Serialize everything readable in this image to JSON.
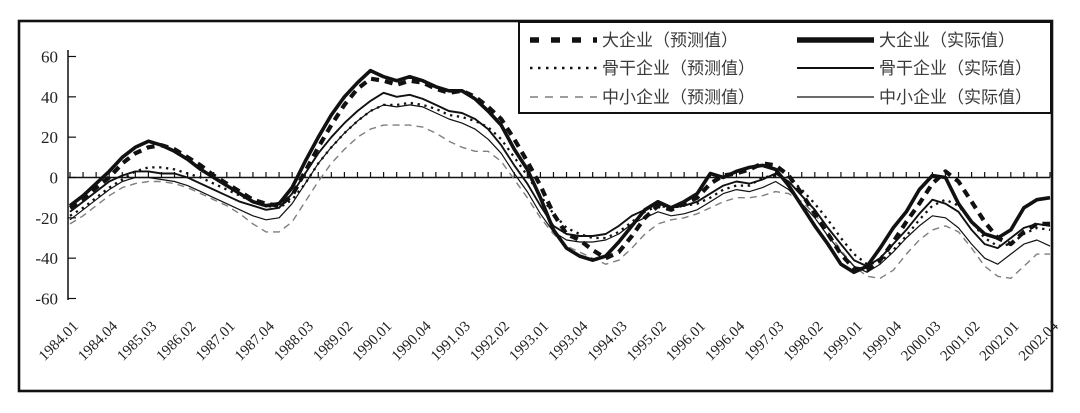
{
  "figure": {
    "background": "#ffffff",
    "frame_color": "#111111",
    "axis_color": "#111111"
  },
  "chart_data": {
    "type": "line",
    "title": "",
    "xlabel": "",
    "ylabel": "",
    "grid": false,
    "x_axis": {
      "unit": "quarter",
      "start": "1984.01",
      "end": "2002.04",
      "num_points": 76,
      "tick_label_every_n_quarters": 3,
      "tick_labels": [
        "1984.01",
        "1984.04",
        "1985.03",
        "1986.02",
        "1987.01",
        "1987.04",
        "1988.03",
        "1989.02",
        "1990.01",
        "1990.04",
        "1991.03",
        "1992.02",
        "1993.01",
        "1993.04",
        "1994.03",
        "1995.02",
        "1996.01",
        "1996.04",
        "1997.03",
        "1998.02",
        "1999.01",
        "1999.04",
        "2000.03",
        "2001.02",
        "2002.01",
        "2002.04"
      ]
    },
    "y_axis": {
      "min": -60,
      "max": 60,
      "tick_step": 20,
      "tick_labels": [
        "60",
        "40",
        "20",
        "0",
        "-20",
        "-40",
        "-60"
      ]
    },
    "legend": {
      "position": "top-right",
      "rows": [
        [
          "大企业（预测值）",
          "大企业（实际值）"
        ],
        [
          "骨干企业（预测值）",
          "骨干企业（实际值）"
        ],
        [
          "中小企业（预测值）",
          "中小企业（实际值）"
        ]
      ]
    },
    "series": [
      {
        "key": "big-forecast",
        "name": "大企业（预测值）",
        "style": "thick-dashed",
        "color": "#111111",
        "values": [
          -15,
          -11,
          -5,
          0,
          7,
          12,
          15,
          16,
          14,
          10,
          6,
          1,
          -3,
          -7,
          -11,
          -13,
          -14,
          -9,
          3,
          15,
          26,
          36,
          44,
          49,
          48,
          46,
          48,
          47,
          44,
          42,
          43,
          40,
          35,
          29,
          19,
          8,
          -4,
          -18,
          -28,
          -31,
          -36,
          -40,
          -37,
          -29,
          -20,
          -14,
          -16,
          -13,
          -10,
          -3,
          1,
          2,
          4,
          7,
          6,
          1,
          -8,
          -18,
          -28,
          -38,
          -45,
          -46,
          -41,
          -32,
          -22,
          -13,
          -3,
          3,
          -2,
          -12,
          -22,
          -30,
          -33,
          -27,
          -23,
          -23
        ]
      },
      {
        "key": "big-actual",
        "name": "大企业（实际值）",
        "style": "thick-solid",
        "color": "#111111",
        "values": [
          -14,
          -9,
          -3,
          3,
          10,
          15,
          18,
          16,
          13,
          9,
          4,
          0,
          -4,
          -8,
          -12,
          -14,
          -13,
          -5,
          8,
          20,
          31,
          40,
          47,
          53,
          50,
          48,
          50,
          48,
          45,
          43,
          43,
          39,
          33,
          26,
          14,
          4,
          -10,
          -26,
          -35,
          -39,
          -41,
          -39,
          -32,
          -24,
          -16,
          -12,
          -15,
          -12,
          -8,
          2,
          0,
          3,
          5,
          6,
          4,
          -4,
          -14,
          -24,
          -33,
          -43,
          -47,
          -44,
          -35,
          -25,
          -17,
          -6,
          1,
          0,
          -13,
          -22,
          -28,
          -30,
          -26,
          -15,
          -11,
          -10
        ]
      },
      {
        "key": "backbone-forecast",
        "name": "骨干企业（预测值）",
        "style": "dotted",
        "color": "#111111",
        "values": [
          -19,
          -15,
          -10,
          -5,
          -1,
          3,
          5,
          5,
          4,
          2,
          0,
          -3,
          -6,
          -9,
          -12,
          -14,
          -15,
          -11,
          -3,
          7,
          15,
          22,
          28,
          33,
          36,
          36,
          37,
          36,
          34,
          31,
          30,
          28,
          25,
          19,
          10,
          1,
          -9,
          -18,
          -25,
          -28,
          -30,
          -30,
          -27,
          -22,
          -17,
          -14,
          -15,
          -14,
          -13,
          -10,
          -6,
          -4,
          -4,
          0,
          1,
          0,
          -6,
          -13,
          -21,
          -30,
          -38,
          -43,
          -42,
          -36,
          -29,
          -21,
          -14,
          -11,
          -14,
          -22,
          -30,
          -34,
          -33,
          -28,
          -25,
          -26
        ]
      },
      {
        "key": "backbone-actual",
        "name": "骨干企业（实际值）",
        "style": "medium-solid",
        "color": "#111111",
        "values": [
          -17,
          -12,
          -7,
          -2,
          1,
          3,
          3,
          2,
          2,
          0,
          -3,
          -6,
          -9,
          -12,
          -14,
          -16,
          -15,
          -8,
          2,
          12,
          20,
          27,
          33,
          38,
          42,
          40,
          41,
          39,
          36,
          33,
          32,
          29,
          24,
          16,
          6,
          -3,
          -14,
          -24,
          -28,
          -29,
          -29,
          -28,
          -24,
          -19,
          -16,
          -13,
          -15,
          -14,
          -12,
          -8,
          -4,
          -2,
          -3,
          -1,
          2,
          -2,
          -9,
          -16,
          -25,
          -33,
          -41,
          -44,
          -40,
          -33,
          -26,
          -18,
          -11,
          -13,
          -17,
          -26,
          -33,
          -35,
          -30,
          -25,
          -23,
          -24
        ]
      },
      {
        "key": "sme-forecast",
        "name": "中小企业（预测值）",
        "style": "thin-dashed",
        "color": "#7f7f7f",
        "values": [
          -23,
          -19,
          -14,
          -9,
          -5,
          -3,
          -2,
          -2,
          -3,
          -5,
          -8,
          -11,
          -14,
          -18,
          -23,
          -27,
          -27,
          -22,
          -12,
          -2,
          7,
          14,
          20,
          24,
          26,
          26,
          26,
          25,
          22,
          18,
          15,
          13,
          13,
          8,
          -1,
          -10,
          -20,
          -28,
          -34,
          -37,
          -40,
          -43,
          -41,
          -35,
          -28,
          -23,
          -21,
          -20,
          -18,
          -15,
          -12,
          -10,
          -10,
          -9,
          -7,
          -8,
          -12,
          -18,
          -27,
          -36,
          -44,
          -49,
          -50,
          -46,
          -38,
          -31,
          -26,
          -24,
          -27,
          -35,
          -44,
          -49,
          -50,
          -44,
          -38,
          -38
        ]
      },
      {
        "key": "sme-actual",
        "name": "中小企业（实际值）",
        "style": "thin-solid",
        "color": "#111111",
        "values": [
          -21,
          -16,
          -11,
          -6,
          -2,
          0,
          0,
          -1,
          -2,
          -4,
          -7,
          -10,
          -13,
          -16,
          -19,
          -21,
          -20,
          -13,
          -3,
          7,
          15,
          22,
          28,
          33,
          36,
          35,
          36,
          35,
          32,
          29,
          27,
          24,
          19,
          12,
          2,
          -7,
          -18,
          -27,
          -31,
          -32,
          -32,
          -31,
          -28,
          -23,
          -20,
          -17,
          -19,
          -18,
          -16,
          -12,
          -8,
          -6,
          -7,
          -5,
          -2,
          -6,
          -13,
          -20,
          -29,
          -37,
          -44,
          -47,
          -43,
          -37,
          -30,
          -24,
          -19,
          -20,
          -25,
          -33,
          -40,
          -43,
          -38,
          -33,
          -31,
          -34
        ]
      }
    ]
  }
}
